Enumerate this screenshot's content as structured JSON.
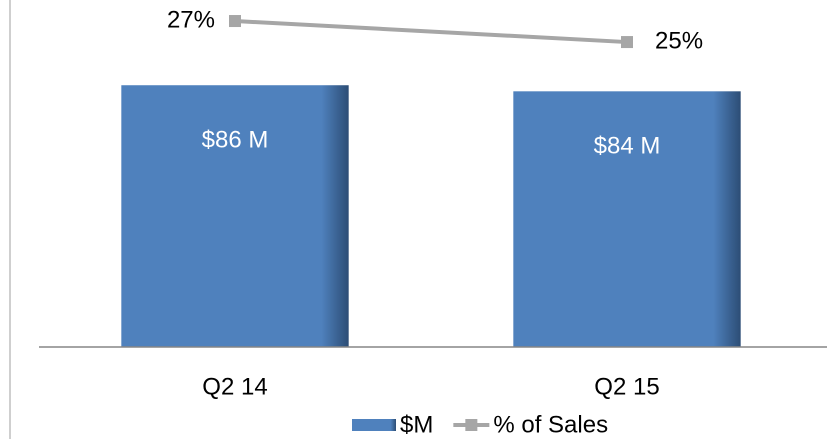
{
  "chart_data": {
    "type": "bar",
    "categories": [
      "Q2 14",
      "Q2 15"
    ],
    "series": [
      {
        "name": "$M",
        "type": "bar",
        "color": "#4f81bd",
        "values": [
          86,
          84
        ],
        "value_labels": [
          "$86 M",
          "$84 M"
        ]
      },
      {
        "name": "% of Sales",
        "type": "line",
        "axis": "y2",
        "color": "#a6a6a6",
        "values": [
          27,
          25
        ],
        "value_labels": [
          "27%",
          "25%"
        ]
      }
    ],
    "ylim": [
      0,
      114
    ],
    "y2lim": [
      -4,
      29
    ]
  }
}
